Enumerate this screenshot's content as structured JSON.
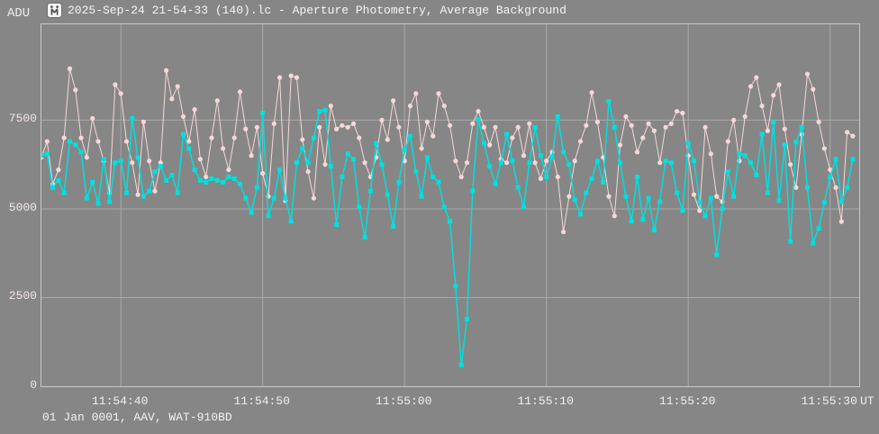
{
  "window": {
    "title": "2025-Sep-24 21-54-33 (140).lc - Aperture Photometry, Average Background",
    "y_unit_label": "ADU",
    "footer": "01 Jan 0001, AAV, WAT-910BD"
  },
  "colors": {
    "background": "#868686",
    "grid": "#a9a9a9",
    "frame": "#c9c9c9",
    "series_pink": "#f6d8d8",
    "series_cyan": "#00e0e0",
    "text": "#f2f2f2",
    "y_tick_text": "#f3e6e6"
  },
  "chart_data": {
    "type": "line",
    "title": "2025-Sep-24 21-54-33 (140).lc - Aperture Photometry, Average Background",
    "xlabel": "UT time",
    "ylabel": "ADU",
    "grid": true,
    "legend": "none",
    "x_axis": {
      "unit": "UT",
      "domain_s_after_1154": [
        34.4,
        92.05
      ],
      "ticks": [
        {
          "t": 40,
          "label": "11:54:40"
        },
        {
          "t": 50,
          "label": "11:54:50"
        },
        {
          "t": 60,
          "label": "11:55:00"
        },
        {
          "t": 70,
          "label": "11:55:10"
        },
        {
          "t": 80,
          "label": "11:55:20"
        },
        {
          "t": 90,
          "label": "11:55:30"
        }
      ]
    },
    "y_axis": {
      "domain": [
        0,
        10200
      ],
      "ticks": [
        0,
        2500,
        5000,
        7500
      ]
    },
    "t_start_s": 34.4,
    "t_step_s": 0.4,
    "series": [
      {
        "name": "pink",
        "color": "#f6d8d8",
        "marker": "circle",
        "values": [
          6450,
          6900,
          5700,
          6100,
          7000,
          8950,
          8350,
          7000,
          6450,
          7550,
          6900,
          6350,
          5450,
          8500,
          8250,
          6900,
          6300,
          5400,
          7450,
          6350,
          5500,
          6300,
          8900,
          8100,
          8450,
          7600,
          6900,
          7800,
          6400,
          5900,
          7000,
          8050,
          6700,
          6100,
          7000,
          8300,
          7250,
          6500,
          7300,
          6000,
          5350,
          7400,
          8700,
          5230,
          8750,
          8700,
          6950,
          6050,
          5300,
          7300,
          6250,
          7900,
          7250,
          7350,
          7300,
          7400,
          7000,
          6300,
          5900,
          6450,
          7500,
          6950,
          8050,
          7300,
          6350,
          7900,
          8250,
          6700,
          7450,
          7050,
          8250,
          7900,
          7350,
          6350,
          5900,
          6300,
          7400,
          7750,
          7300,
          6800,
          7300,
          6400,
          6300,
          7000,
          7300,
          6500,
          7400,
          6300,
          5850,
          6350,
          6600,
          5900,
          4350,
          5350,
          6350,
          6900,
          7350,
          8280,
          7450,
          6450,
          5350,
          4800,
          6800,
          7600,
          7350,
          6600,
          7000,
          7400,
          7200,
          6300,
          7300,
          7400,
          7750,
          7700,
          6500,
          5400,
          4950,
          7300,
          6550,
          5350,
          5200,
          6900,
          7500,
          6350,
          7600,
          8450,
          8700,
          7900,
          7200,
          8200,
          8500,
          7250,
          6250,
          5600,
          7100,
          8800,
          8370,
          7450,
          6700,
          6100,
          5600,
          4640,
          7160,
          7050
        ]
      },
      {
        "name": "cyan",
        "color": "#00e0e0",
        "marker": "square",
        "values": [
          6500,
          6550,
          5600,
          5800,
          5450,
          6900,
          6800,
          6600,
          5300,
          5750,
          5150,
          6400,
          5200,
          6300,
          6350,
          5450,
          7550,
          6450,
          5350,
          5500,
          6050,
          6200,
          5800,
          5950,
          5450,
          7100,
          6700,
          6100,
          5800,
          5750,
          5850,
          5800,
          5750,
          5900,
          5850,
          5700,
          5300,
          4900,
          5600,
          7700,
          4800,
          5300,
          6100,
          5300,
          4650,
          6300,
          6700,
          6300,
          7000,
          7750,
          7780,
          6200,
          4550,
          5900,
          6550,
          6400,
          5050,
          4200,
          5500,
          6850,
          6250,
          5400,
          4500,
          5750,
          6650,
          7050,
          6050,
          5350,
          6450,
          5900,
          5750,
          5050,
          4650,
          2820,
          600,
          1890,
          5510,
          7520,
          6850,
          6200,
          5700,
          6300,
          7100,
          6350,
          5600,
          5050,
          6300,
          7300,
          6500,
          5900,
          6450,
          7600,
          6600,
          6250,
          5250,
          4850,
          5450,
          5850,
          6350,
          5750,
          8030,
          7300,
          6300,
          5350,
          4650,
          5900,
          4700,
          5300,
          4400,
          5200,
          6350,
          6300,
          5450,
          4950,
          6850,
          6350,
          5200,
          4800,
          5300,
          3700,
          5000,
          6050,
          5350,
          6550,
          6500,
          6300,
          5950,
          7100,
          5450,
          7440,
          5230,
          6800,
          4080,
          6880,
          7300,
          5600,
          4030,
          4450,
          5180,
          5890,
          6400,
          5200,
          5600,
          6400
        ]
      }
    ]
  }
}
